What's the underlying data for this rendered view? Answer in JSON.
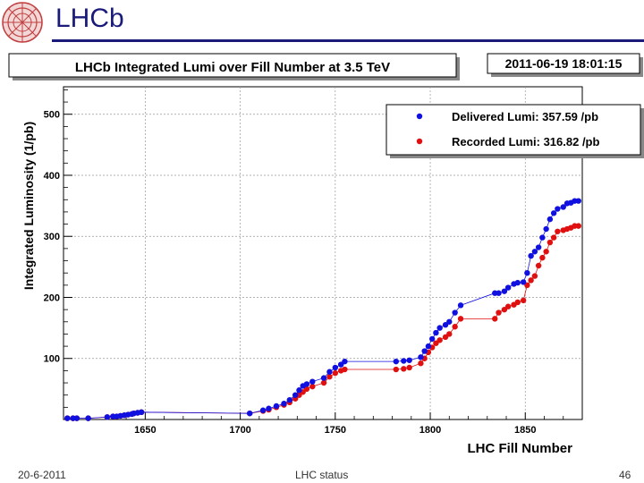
{
  "slide": {
    "title": "LHCb",
    "footer_left": "20-6-2011",
    "footer_center": "LHC status",
    "page_number": "46"
  },
  "chart_data": {
    "type": "scatter",
    "title": "LHCb Integrated Lumi over Fill Number at 3.5 TeV",
    "timestamp": "2011-06-19 18:01:15",
    "xlabel": "LHC Fill Number",
    "ylabel": "Integrated Luminosity (1/pb)",
    "xlim": [
      1607,
      1880
    ],
    "ylim": [
      0,
      545
    ],
    "xticks": [
      1650,
      1700,
      1750,
      1800,
      1850
    ],
    "yticks": [
      100,
      200,
      300,
      400,
      500
    ],
    "grid": true,
    "legend_position": "top-right",
    "series": [
      {
        "name": "Delivered Lumi: 357.59 /pb",
        "color": "#1010e0",
        "x": [
          1609,
          1612,
          1614,
          1620,
          1630,
          1633,
          1635,
          1637,
          1639,
          1641,
          1643,
          1644,
          1646,
          1648,
          1705,
          1712,
          1715,
          1719,
          1723,
          1726,
          1729,
          1731,
          1733,
          1735,
          1738,
          1744,
          1747,
          1750,
          1753,
          1755,
          1782,
          1786,
          1789,
          1795,
          1797,
          1799,
          1801,
          1803,
          1805,
          1808,
          1810,
          1813,
          1816,
          1834,
          1836,
          1839,
          1841,
          1844,
          1846,
          1849,
          1851,
          1853,
          1855,
          1857,
          1859,
          1861,
          1863,
          1865,
          1867,
          1870,
          1872,
          1874,
          1876,
          1878
        ],
        "y": [
          2,
          2,
          2,
          2,
          4,
          5,
          5,
          6,
          7,
          8,
          9,
          10,
          11,
          12,
          10,
          15,
          18,
          22,
          26,
          32,
          40,
          48,
          55,
          58,
          62,
          68,
          78,
          85,
          90,
          95,
          95,
          96,
          97,
          102,
          112,
          120,
          132,
          142,
          150,
          155,
          160,
          175,
          187,
          207,
          207,
          210,
          216,
          222,
          224,
          225,
          240,
          268,
          275,
          282,
          298,
          312,
          328,
          338,
          345,
          348,
          354,
          355,
          358,
          358
        ]
      },
      {
        "name": "Recorded Lumi: 316.82 /pb",
        "color": "#e01010",
        "x": [
          1609,
          1612,
          1614,
          1620,
          1630,
          1633,
          1635,
          1637,
          1639,
          1641,
          1643,
          1644,
          1646,
          1648,
          1705,
          1712,
          1715,
          1719,
          1723,
          1726,
          1729,
          1731,
          1733,
          1735,
          1738,
          1744,
          1747,
          1750,
          1753,
          1755,
          1782,
          1786,
          1789,
          1795,
          1797,
          1799,
          1801,
          1803,
          1805,
          1808,
          1810,
          1813,
          1816,
          1834,
          1836,
          1839,
          1841,
          1844,
          1846,
          1849,
          1851,
          1853,
          1855,
          1857,
          1859,
          1861,
          1863,
          1865,
          1867,
          1870,
          1872,
          1874,
          1876,
          1878
        ],
        "y": [
          2,
          2,
          2,
          2,
          4,
          5,
          5,
          6,
          7,
          8,
          9,
          10,
          11,
          12,
          10,
          14,
          16,
          20,
          24,
          28,
          34,
          40,
          45,
          50,
          54,
          60,
          70,
          76,
          80,
          82,
          82,
          83,
          85,
          92,
          100,
          110,
          118,
          125,
          130,
          135,
          140,
          152,
          165,
          165,
          175,
          180,
          185,
          188,
          192,
          195,
          220,
          228,
          235,
          252,
          265,
          275,
          290,
          298,
          308,
          310,
          312,
          314,
          317,
          317
        ]
      }
    ]
  }
}
